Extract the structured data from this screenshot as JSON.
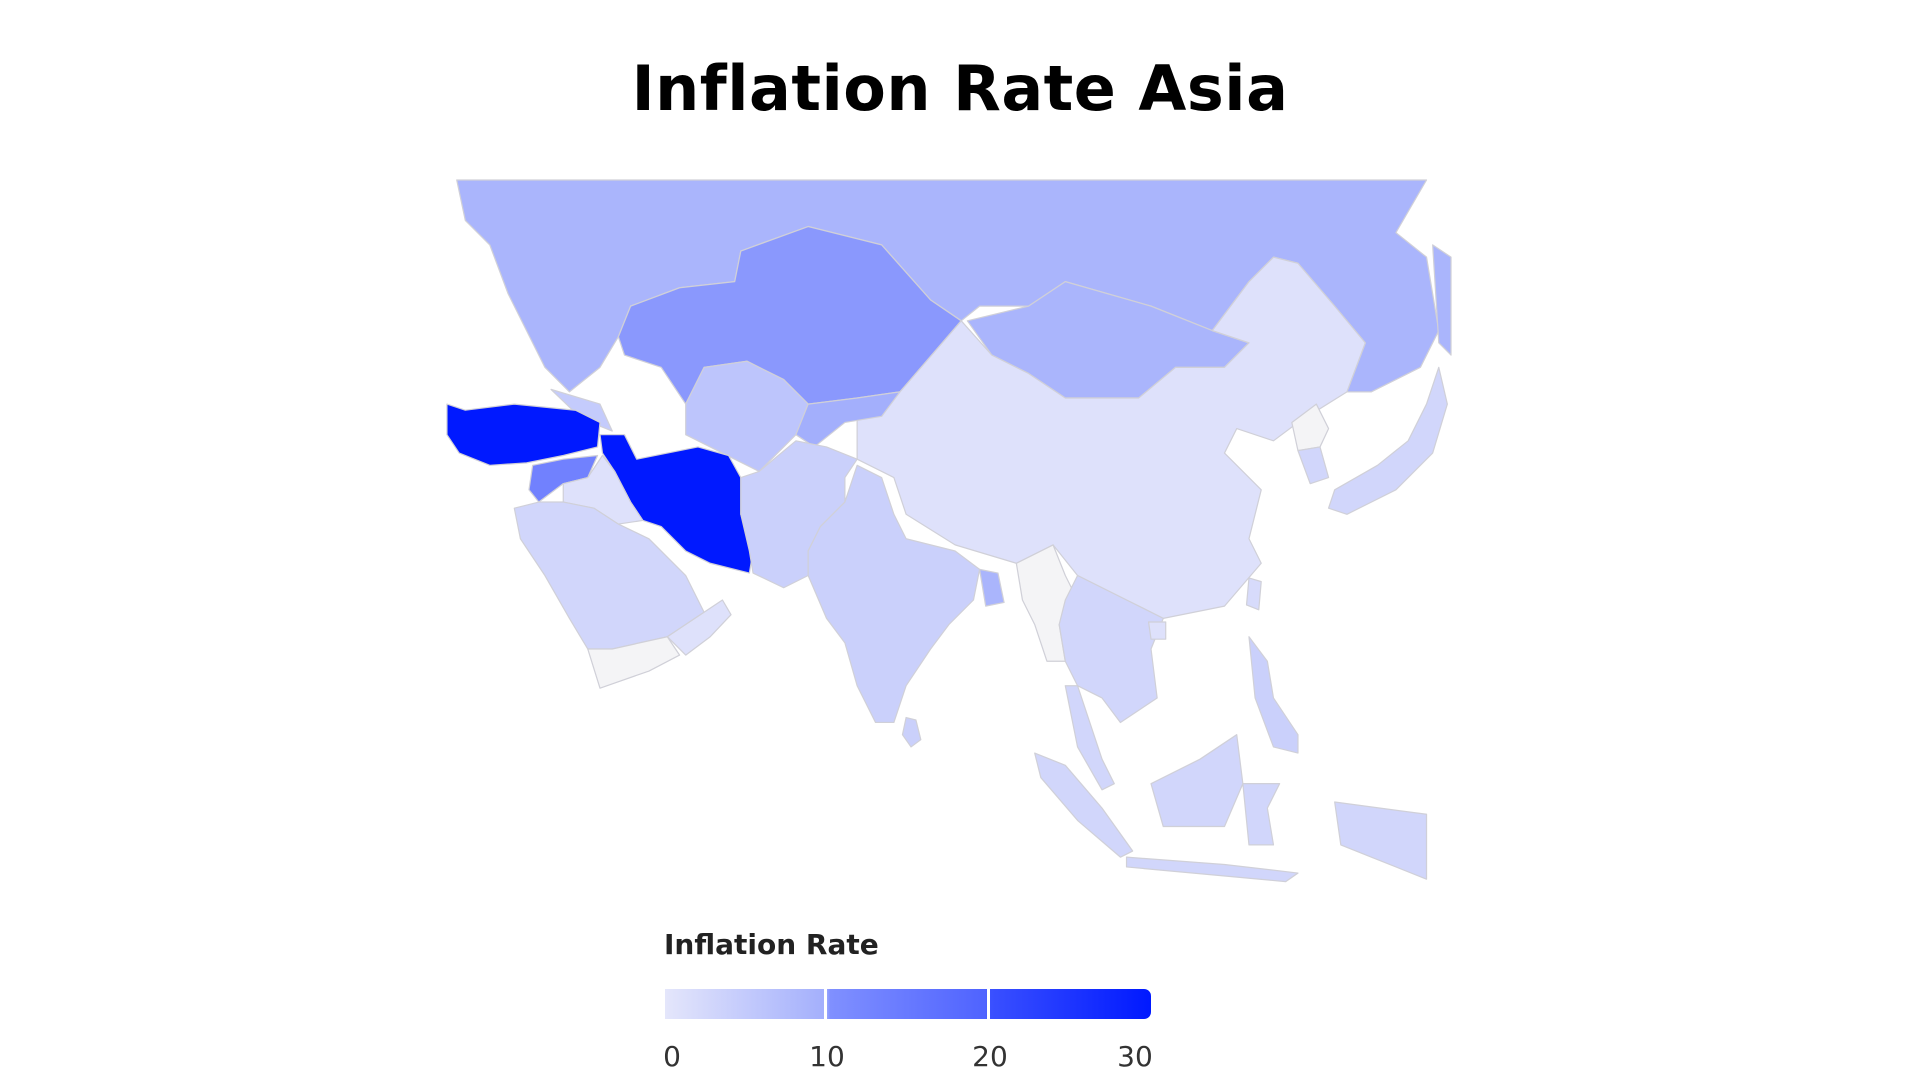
{
  "title": "Inflation Rate Asia",
  "chart_data": {
    "type": "choropleth",
    "title": "Inflation Rate Asia",
    "legend": {
      "title": "Inflation Rate",
      "ticks": [
        "0",
        "10",
        "20",
        "30"
      ],
      "range": [
        0,
        30
      ],
      "colors": [
        "#e4e6fb",
        "#a3affc",
        "#4f63ff",
        "#0019ff"
      ],
      "placement": "bottom-left"
    },
    "no_data_color": "#f4f4f6",
    "border_color": "#d0d0d8",
    "regions": [
      {
        "id": "russia",
        "value": 9
      },
      {
        "id": "kazakhstan",
        "value": 13
      },
      {
        "id": "mongolia",
        "value": 9
      },
      {
        "id": "china",
        "value": 1
      },
      {
        "id": "uzbekistan-turkmenistan",
        "value": 6
      },
      {
        "id": "kyrgyzstan-tajikistan",
        "value": 10
      },
      {
        "id": "caucasus",
        "value": 5
      },
      {
        "id": "turkey",
        "value": 30
      },
      {
        "id": "iran",
        "value": 30
      },
      {
        "id": "syria",
        "value": 16
      },
      {
        "id": "iraq",
        "value": 1
      },
      {
        "id": "saudi-arabia",
        "value": 3
      },
      {
        "id": "yemen",
        "value": null
      },
      {
        "id": "oman-uae",
        "value": 1
      },
      {
        "id": "afghanistan-pakistan",
        "value": 4
      },
      {
        "id": "india",
        "value": 4
      },
      {
        "id": "sri-lanka",
        "value": 4
      },
      {
        "id": "bangladesh",
        "value": 9
      },
      {
        "id": "myanmar",
        "value": null
      },
      {
        "id": "indochina",
        "value": 3
      },
      {
        "id": "malay-peninsula",
        "value": 3
      },
      {
        "id": "sumatra",
        "value": 3
      },
      {
        "id": "borneo",
        "value": 3
      },
      {
        "id": "java",
        "value": 3
      },
      {
        "id": "sulawesi",
        "value": 3
      },
      {
        "id": "new-guinea",
        "value": 3
      },
      {
        "id": "philippines",
        "value": 4
      },
      {
        "id": "north-korea",
        "value": null
      },
      {
        "id": "south-korea",
        "value": 3
      },
      {
        "id": "japan",
        "value": 3
      },
      {
        "id": "sakhalin",
        "value": 9
      },
      {
        "id": "taiwan",
        "value": 2
      },
      {
        "id": "hainan",
        "value": 1
      }
    ]
  }
}
